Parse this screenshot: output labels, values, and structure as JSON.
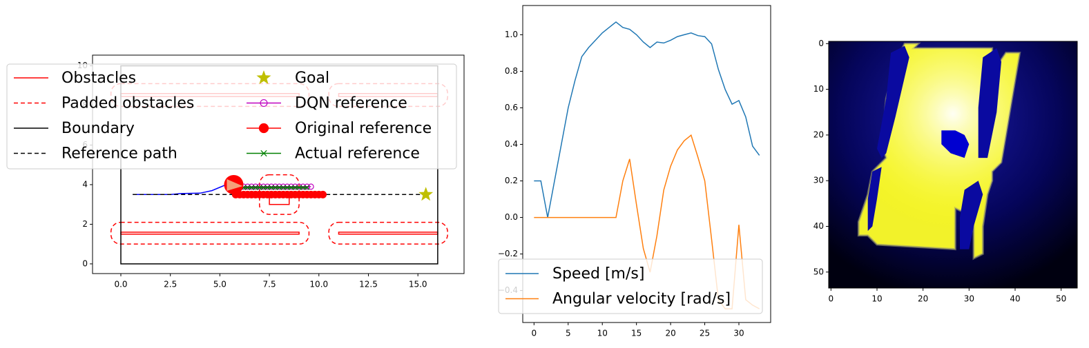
{
  "chart_data": [
    {
      "type": "map",
      "xlim": [
        -1.43,
        17.33
      ],
      "ylim": [
        -0.49,
        10.54
      ],
      "xticks": [
        {
          "value": 0,
          "label": "0.0"
        },
        2.5,
        {
          "value": 5,
          "label": "5.0"
        },
        7.5,
        {
          "value": 10,
          "label": "10.0"
        },
        12.5,
        {
          "value": 15,
          "label": "15.0"
        }
      ],
      "yticks": [
        0,
        2,
        4,
        6,
        8,
        10
      ],
      "series": [
        {
          "name": "Obstacles",
          "color": "#ff0000",
          "boxes": [
            [
              0,
              1.5,
              9,
              1.6
            ],
            [
              11,
              1.5,
              16,
              1.6
            ],
            [
              0,
              8.45,
              9,
              8.6
            ],
            [
              11,
              8.45,
              16,
              8.6
            ],
            [
              7.5,
              3.0,
              8.5,
              3.5
            ]
          ]
        },
        {
          "name": "Padded obstacles",
          "color": "#ff0000",
          "linestyle": "dashed",
          "boxes": [
            [
              -0.5,
              1.0,
              9.5,
              2.1
            ],
            [
              10.5,
              1.0,
              16.5,
              2.1
            ],
            [
              -0.5,
              7.95,
              9.5,
              9.1
            ],
            [
              10.5,
              7.95,
              16.5,
              9.1
            ],
            [
              7.0,
              2.5,
              9.0,
              4.5
            ]
          ]
        },
        {
          "name": "Boundary",
          "color": "#000000",
          "boxes": [
            [
              0,
              0,
              16,
              10
            ]
          ]
        },
        {
          "name": "Reference path",
          "color": "#000000",
          "linestyle": "dashed",
          "x": [
            0.6,
            15.4
          ],
          "y": [
            3.5,
            3.5
          ]
        },
        {
          "name": "Goal",
          "color": "#bfbf00",
          "marker": "star",
          "x": [
            15.4
          ],
          "y": [
            3.5
          ]
        },
        {
          "name": "DQN reference",
          "color": "#bf00bf",
          "linestyle": "solid",
          "marker": "open-circle",
          "x": [
            6.2,
            6.4,
            6.6,
            6.8,
            7.0,
            7.2,
            7.4,
            7.6,
            7.8,
            8.0,
            8.2,
            8.4,
            8.6,
            8.8,
            9.0,
            9.2,
            9.4,
            9.6
          ],
          "y": [
            3.9,
            3.9,
            3.9,
            3.9,
            3.9,
            3.9,
            3.9,
            3.9,
            3.9,
            3.9,
            3.9,
            3.9,
            3.9,
            3.9,
            3.9,
            3.9,
            3.9,
            3.9
          ]
        },
        {
          "name": "Original reference",
          "color": "#ff0000",
          "linestyle": "solid",
          "marker": "dot",
          "x": [
            5.8,
            6.0,
            6.2,
            6.4,
            6.6,
            6.8,
            7.0,
            7.2,
            7.4,
            7.6,
            7.8,
            8.0,
            8.2,
            8.4,
            8.6,
            8.8,
            9.0,
            9.2,
            9.4,
            9.6,
            9.8,
            10.0,
            10.2
          ],
          "y": [
            3.5,
            3.5,
            3.5,
            3.5,
            3.5,
            3.5,
            3.5,
            3.5,
            3.5,
            3.5,
            3.5,
            3.5,
            3.5,
            3.5,
            3.5,
            3.5,
            3.5,
            3.5,
            3.5,
            3.5,
            3.5,
            3.5,
            3.5
          ]
        },
        {
          "name": "Actual reference",
          "color": "#008000",
          "linestyle": "solid",
          "marker": "x",
          "x": [
            6.0,
            6.2,
            6.4,
            6.6,
            6.8,
            7.0,
            7.2,
            7.4,
            7.6,
            7.8,
            8.0,
            8.2,
            8.4,
            8.6,
            8.8,
            9.0,
            9.2,
            9.4
          ],
          "y": [
            3.85,
            3.85,
            3.85,
            3.85,
            3.85,
            3.85,
            3.85,
            3.85,
            3.85,
            3.85,
            3.85,
            3.85,
            3.85,
            3.85,
            3.85,
            3.85,
            3.85,
            3.85
          ]
        }
      ],
      "trajectory": {
        "color": "#0000ff",
        "x": [
          0.6,
          2.5,
          3.0,
          4.0,
          4.6,
          5.2,
          5.7
        ],
        "y": [
          3.5,
          3.5,
          3.55,
          3.57,
          3.7,
          3.95,
          4.0
        ]
      },
      "robot": {
        "color": "#ff0000",
        "x": 5.7,
        "y": 4.0
      },
      "legend": "upper left"
    },
    {
      "type": "line",
      "x": [
        0,
        1,
        2,
        3,
        4,
        5,
        6,
        7,
        8,
        9,
        10,
        11,
        12,
        13,
        14,
        15,
        16,
        17,
        18,
        19,
        20,
        21,
        22,
        23,
        24,
        25,
        26,
        27,
        28,
        29,
        30,
        31,
        32,
        33
      ],
      "xlim": [
        -1.65,
        34.65
      ],
      "ylim": [
        -0.575,
        1.16
      ],
      "xticks": [
        0,
        5,
        10,
        15,
        20,
        25,
        30
      ],
      "yticks": [
        {
          "value": -0.4,
          "label": "−0.4"
        },
        {
          "value": -0.2,
          "label": "−0.2"
        },
        {
          "value": 0,
          "label": "0.0"
        },
        0.2,
        0.4,
        0.6,
        0.8,
        {
          "value": 1,
          "label": "1.0"
        }
      ],
      "series": [
        {
          "name": "Speed [m/s]",
          "color": "#1f77b4",
          "values": [
            0.2,
            0.2,
            0.0,
            0.2,
            0.4,
            0.6,
            0.75,
            0.88,
            0.93,
            0.97,
            1.01,
            1.04,
            1.07,
            1.04,
            1.03,
            1.0,
            0.96,
            0.93,
            0.96,
            0.955,
            0.97,
            0.99,
            1.0,
            1.01,
            0.995,
            0.99,
            0.95,
            0.81,
            0.7,
            0.62,
            0.64,
            0.55,
            0.39,
            0.34
          ]
        },
        {
          "name": "Angular velocity [rad/s]",
          "color": "#ff7f0e",
          "values": [
            0,
            0,
            0,
            0,
            0,
            0,
            0,
            0,
            0,
            0,
            0,
            0,
            0,
            0.2,
            0.32,
            0.07,
            -0.17,
            -0.3,
            -0.1,
            0.15,
            0.28,
            0.37,
            0.42,
            0.45,
            0.33,
            0.2,
            -0.12,
            -0.45,
            -0.5,
            -0.5,
            -0.04,
            -0.45,
            -0.48,
            -0.5
          ]
        }
      ],
      "legend": "lower left"
    },
    {
      "type": "image",
      "xlim": [
        -0.5,
        53.5
      ],
      "ylim": [
        53.5,
        -0.5
      ],
      "xticks": [
        0,
        10,
        20,
        30,
        40,
        50
      ],
      "yticks": [
        0,
        10,
        20,
        30,
        40,
        50
      ],
      "regions": [
        {
          "color": "#f2f22a",
          "x": [
            16,
            19,
            18,
            35,
            35,
            36,
            38,
            41,
            40,
            39,
            38,
            37,
            35,
            35,
            34,
            33,
            33,
            31,
            31,
            29,
            27,
            27,
            10,
            8,
            6,
            6,
            8,
            9,
            12,
            11,
            12,
            14
          ],
          "y": [
            0,
            0,
            1,
            1,
            4,
            5,
            2,
            2,
            8,
            14,
            20,
            26,
            28,
            30,
            33,
            40,
            46,
            47,
            40,
            37,
            36,
            45,
            44,
            42,
            42,
            39,
            33,
            28,
            25,
            22,
            12,
            4
          ]
        },
        {
          "color": "#0a0aa0",
          "x": [
            13,
            16,
            17,
            14,
            12,
            11,
            10,
            12
          ],
          "y": [
            2,
            0.5,
            3,
            16,
            24,
            25,
            23,
            12
          ]
        },
        {
          "color": "#0a0aa0",
          "x": [
            33,
            36,
            37,
            36,
            34,
            32,
            32
          ],
          "y": [
            3,
            1,
            4,
            15,
            25,
            25,
            14
          ]
        },
        {
          "color": "#0000d0",
          "x": [
            24,
            27,
            29,
            30,
            29,
            26,
            24
          ],
          "y": [
            19,
            19,
            20,
            22,
            25,
            24,
            22
          ]
        },
        {
          "color": "#0a0aa0",
          "x": [
            9,
            11,
            10,
            9,
            8,
            8
          ],
          "y": [
            28,
            27,
            34,
            40,
            41,
            34
          ]
        },
        {
          "color": "#0a0aa0",
          "x": [
            29,
            32,
            33,
            31,
            30,
            28,
            28
          ],
          "y": [
            32,
            30,
            33,
            40,
            45,
            45,
            38
          ]
        }
      ]
    }
  ]
}
